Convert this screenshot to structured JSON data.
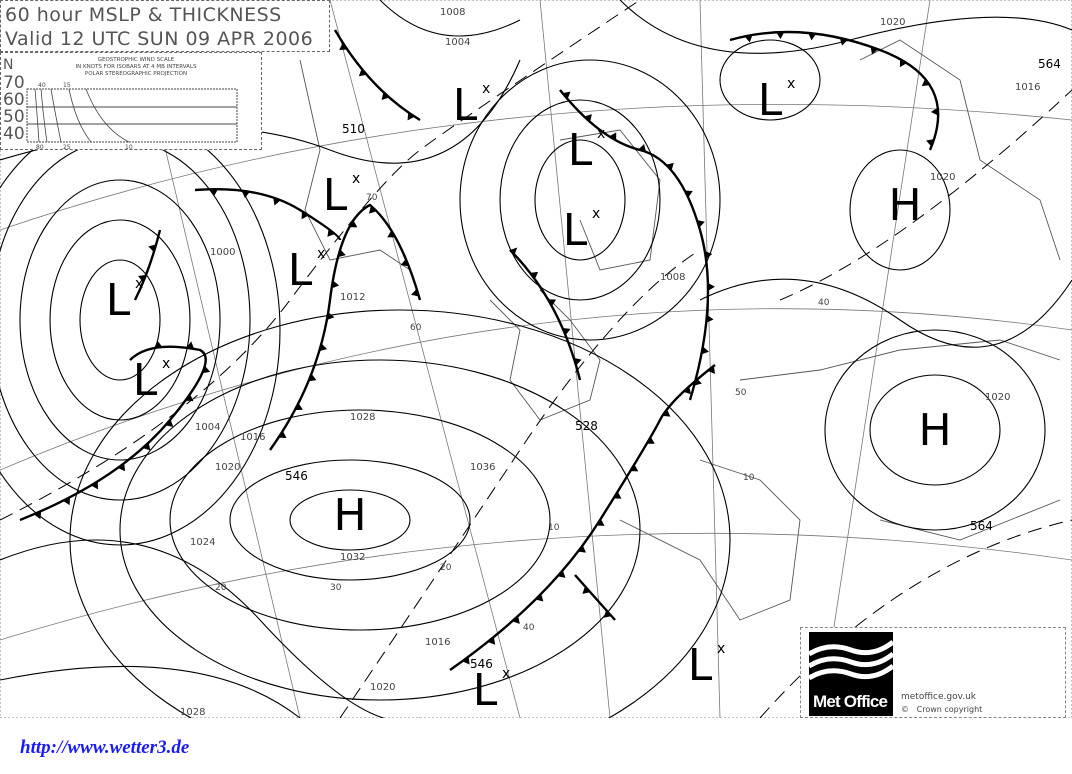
{
  "title": {
    "line1": "60 hour MSLP & THICKNESS",
    "line2": "Valid 12 UTC SUN 09 APR 2006"
  },
  "wind_scale": {
    "heading": [
      "GEOSTROPHIC WIND SCALE",
      "IN KNOTS FOR ISOBARS AT  4 MB INTERVALS",
      "POLAR STEREOGRAPHIC PROJECTION"
    ],
    "axis_letter": "N",
    "latitudes": [
      "70",
      "60",
      "50",
      "40"
    ],
    "top_ticks": [
      "40",
      "15"
    ],
    "bottom_ticks": [
      "80",
      "25",
      "10"
    ]
  },
  "pressure_centers": [
    {
      "type": "L"
    },
    {
      "type": "L"
    },
    {
      "type": "L"
    },
    {
      "type": "L"
    },
    {
      "type": "L"
    },
    {
      "type": "L"
    },
    {
      "type": "L"
    },
    {
      "type": "L"
    },
    {
      "type": "L"
    },
    {
      "type": "L"
    },
    {
      "type": "H"
    },
    {
      "type": "H"
    },
    {
      "type": "H"
    }
  ],
  "isobar_labels": [
    "1008",
    "1004",
    "1020",
    "1016",
    "1000",
    "1012",
    "1028",
    "1024",
    "1032",
    "1036",
    "1004",
    "1020",
    "1016",
    "1028",
    "1016",
    "1020",
    "1020",
    "1008",
    "1020"
  ],
  "thickness_labels": [
    "564",
    "510",
    "546",
    "528",
    "546",
    "564"
  ],
  "latitude_labels": [
    "70",
    "60",
    "50",
    "40",
    "30",
    "20",
    "10",
    "10",
    "40",
    "20"
  ],
  "colors": {
    "lines": "#000000",
    "coast": "#555555",
    "url": "#1a1aff"
  },
  "logo": {
    "brand": "Met Office",
    "url": "metoffice.gov.uk",
    "copyright": "©   Crown copyright"
  },
  "footer_url": "http://www.wetter3.de"
}
